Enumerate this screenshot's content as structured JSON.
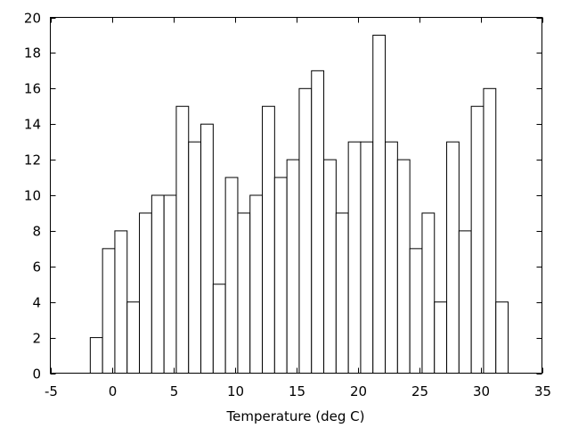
{
  "chart_data": {
    "type": "bar",
    "title": "",
    "xlabel": "Temperature (deg C)",
    "ylabel": "",
    "xlim": [
      -5,
      35
    ],
    "ylim": [
      0,
      20
    ],
    "xticks": [
      -5,
      0,
      5,
      10,
      15,
      20,
      25,
      30,
      35
    ],
    "yticks": [
      0,
      2,
      4,
      6,
      8,
      10,
      12,
      14,
      16,
      18,
      20
    ],
    "grid": false,
    "legend": "none",
    "bin_width": 1,
    "bin_start": -1.75,
    "values": [
      2,
      7,
      8,
      4,
      9,
      10,
      10,
      15,
      13,
      14,
      5,
      11,
      9,
      10,
      15,
      11,
      12,
      16,
      17,
      12,
      9,
      13,
      13,
      19,
      13,
      12,
      7,
      9,
      4,
      13,
      8,
      15,
      16,
      4
    ],
    "colors": {
      "bar_fill": "#ffffff",
      "bar_stroke": "#000000"
    }
  }
}
